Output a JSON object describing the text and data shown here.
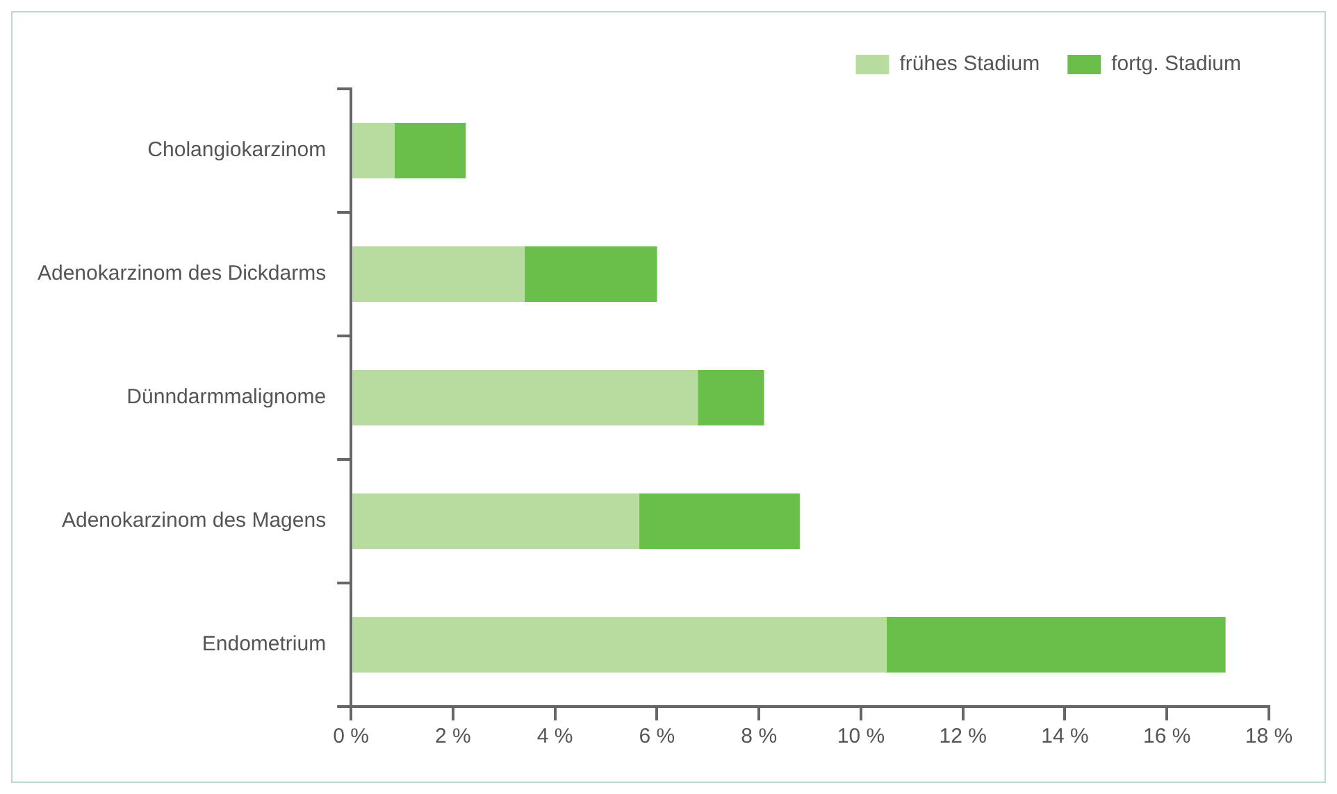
{
  "chart_data": {
    "type": "bar",
    "orientation": "horizontal",
    "stacked": true,
    "categories": [
      "Cholangiokarzinom",
      "Adenokarzinom des Dickdarms",
      "Dünndarmmalignome",
      "Adenokarzinom des Magens",
      "Endometrium"
    ],
    "series": [
      {
        "name": "frühes Stadium",
        "color": "#b8dba0",
        "values": [
          0.85,
          3.4,
          6.8,
          5.65,
          10.5
        ]
      },
      {
        "name": "fortg. Stadium",
        "color": "#6abf4b",
        "values": [
          1.4,
          2.6,
          1.3,
          3.15,
          6.65
        ]
      }
    ],
    "xlim": [
      0,
      18
    ],
    "xticks": [
      {
        "value": 0,
        "label": "0 %"
      },
      {
        "value": 2,
        "label": "2 %"
      },
      {
        "value": 4,
        "label": "4 %"
      },
      {
        "value": 6,
        "label": "6 %"
      },
      {
        "value": 8,
        "label": "8 %"
      },
      {
        "value": 10,
        "label": "10 %"
      },
      {
        "value": 12,
        "label": "12 %"
      },
      {
        "value": 14,
        "label": "14 %"
      },
      {
        "value": 16,
        "label": "16 %"
      },
      {
        "value": 18,
        "label": "18 %"
      }
    ],
    "grid": false,
    "legend": "top right"
  }
}
